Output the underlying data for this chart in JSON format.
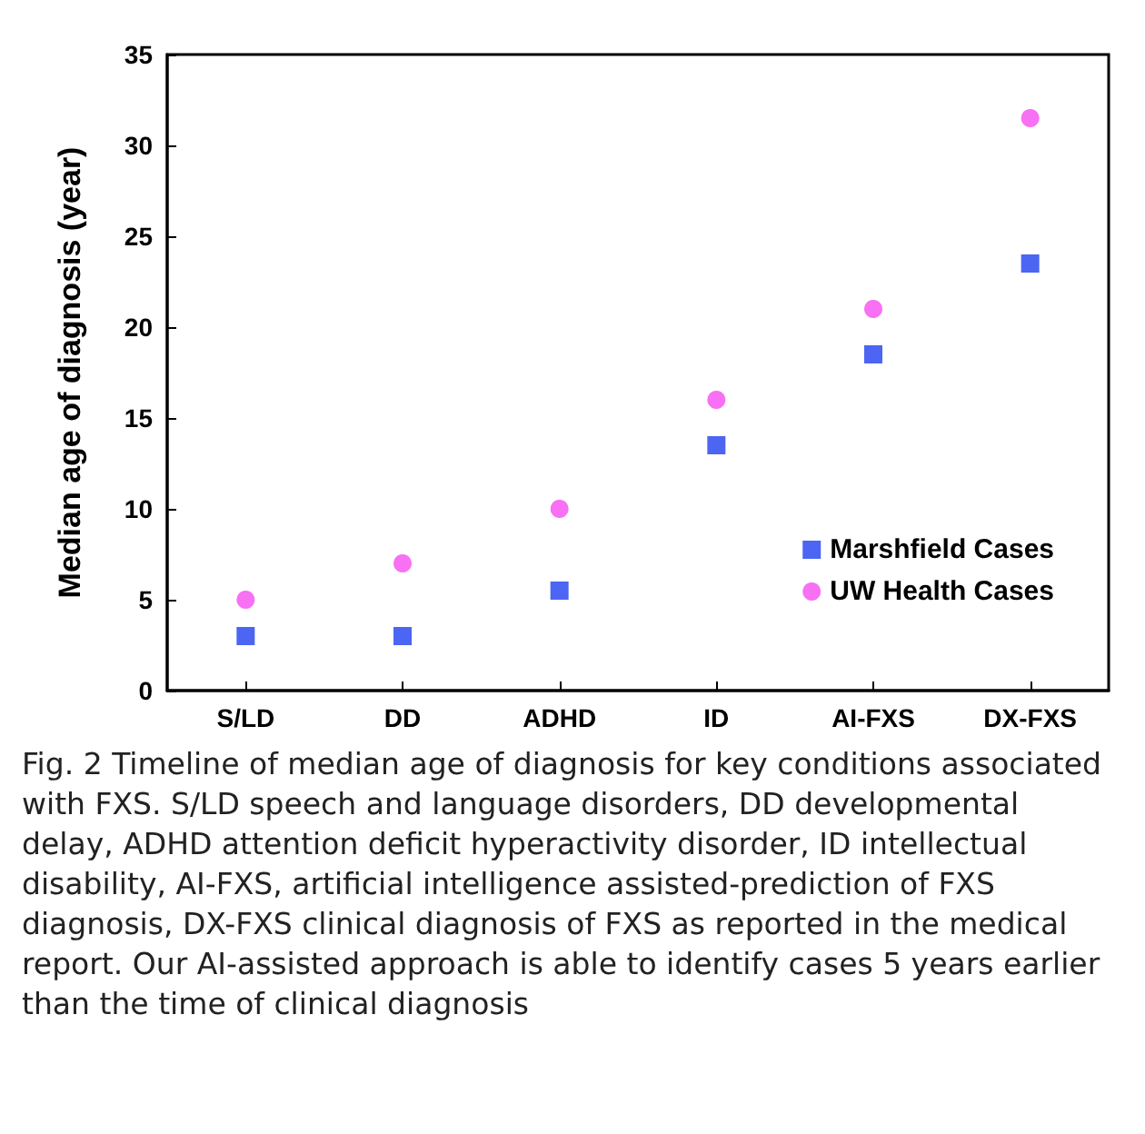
{
  "chart_data": {
    "type": "scatter",
    "ylabel": "Median age of diagnosis (year)",
    "categories": [
      "S/LD",
      "DD",
      "ADHD",
      "ID",
      "AI-FXS",
      "DX-FXS"
    ],
    "series": [
      {
        "name": "Marshfield Cases",
        "color": "#1f3ff0",
        "marker": "square",
        "values": [
          3,
          3,
          5.5,
          13.5,
          18.5,
          23.5
        ]
      },
      {
        "name": "UW Health Cases",
        "color": "#f64cf0",
        "marker": "circle",
        "values": [
          5,
          7,
          10,
          16,
          21,
          31.5
        ]
      }
    ],
    "ylim": [
      0,
      35
    ],
    "yticks": [
      0,
      5,
      10,
      15,
      20,
      25,
      30,
      35
    ],
    "grid": false,
    "legend": "right",
    "annotations": [
      "Fig. 2 Timeline of median age of diagnosis for key conditions associated with FXS. S/LD speech and language disorders, DD developmental delay, ADHD attention deficit hyperactivity disorder, ID intellectual disability, AI-FXS, artificial intelligence assisted-prediction of FXS diagnosis, DX-FXS clinical diagnosis of FXS as reported in the medical report. Our AI-assisted approach is able to identify cases 5 years earlier than the time of clinical diagnosis"
    ]
  }
}
